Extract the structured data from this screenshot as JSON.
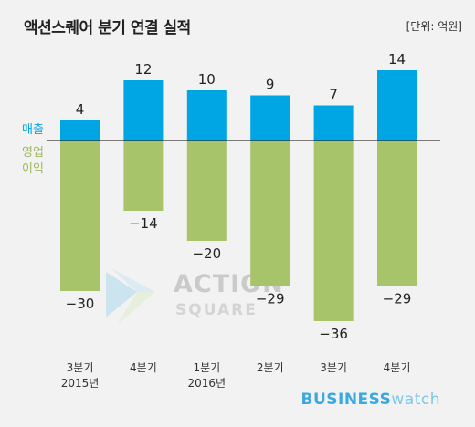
{
  "title": "액션스퀘어 분기 연결 실적",
  "unit": "[단위: 억원]",
  "chart_data": {
    "type": "bar",
    "categories": [
      "3분기\n2015년",
      "4분기",
      "1분기\n2016년",
      "2분기",
      "3분기",
      "4분기"
    ],
    "series": [
      {
        "name": "매출",
        "values": [
          4,
          12,
          10,
          9,
          7,
          14
        ],
        "color": "#00a5e3"
      },
      {
        "name": "영업이익",
        "values": [
          -30,
          -14,
          -20,
          -29,
          -36,
          -29
        ],
        "color": "#a8c46a"
      }
    ],
    "value_labels": {
      "revenue": [
        "4",
        "12",
        "10",
        "9",
        "7",
        "14"
      ],
      "operating_profit": [
        "−30",
        "−14",
        "−20",
        "−29",
        "−36",
        "−29"
      ]
    },
    "legend": {
      "revenue": "매출",
      "profit_line1": "영업",
      "profit_line2": "이익"
    }
  },
  "watermark": {
    "line1": "ACTION",
    "line2": "SQUARE"
  },
  "brand": {
    "bold": "BUSINESS",
    "light": "watch"
  }
}
